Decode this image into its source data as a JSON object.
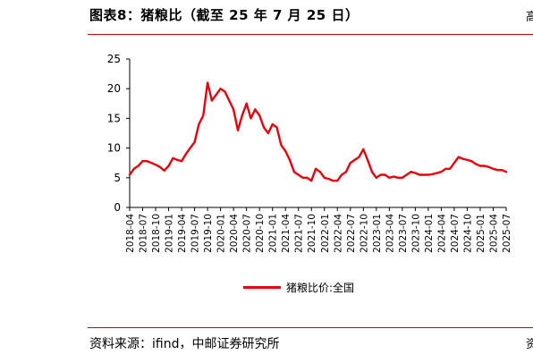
{
  "title": "图表8：猪粮比（截至 25 年 7 月 25 日）",
  "source": "资料来源：ifind，中邮证券研究所",
  "edge_marks": {
    "top": "高",
    "bottom": "资"
  },
  "chart_data": {
    "type": "line",
    "title": "",
    "xlabel": "",
    "ylabel": "",
    "ylim": [
      0,
      25
    ],
    "yticks": [
      0,
      5,
      10,
      15,
      20,
      25
    ],
    "x_range": [
      "2018-04",
      "2025-07"
    ],
    "xtick_labels": [
      "2018-04",
      "2018-07",
      "2018-10",
      "2019-01",
      "2019-04",
      "2019-07",
      "2019-10",
      "2020-01",
      "2020-04",
      "2020-07",
      "2020-10",
      "2021-01",
      "2021-04",
      "2021-07",
      "2021-10",
      "2022-01",
      "2022-04",
      "2022-07",
      "2022-10",
      "2023-01",
      "2023-04",
      "2023-07",
      "2023-10",
      "2024-01",
      "2024-04",
      "2024-07",
      "2024-10",
      "2025-01",
      "2025-04",
      "2025-07"
    ],
    "legend_position": "bottom",
    "colors": {
      "series": "#e8000b"
    },
    "series": [
      {
        "name": "猪粮比价:全国",
        "x": [
          "2018-04",
          "2018-05",
          "2018-06",
          "2018-07",
          "2018-08",
          "2018-09",
          "2018-10",
          "2018-11",
          "2018-12",
          "2019-01",
          "2019-02",
          "2019-03",
          "2019-04",
          "2019-05",
          "2019-06",
          "2019-07",
          "2019-08",
          "2019-09",
          "2019-10",
          "2019-11",
          "2019-12",
          "2020-01",
          "2020-02",
          "2020-03",
          "2020-04",
          "2020-05",
          "2020-06",
          "2020-07",
          "2020-08",
          "2020-09",
          "2020-10",
          "2020-11",
          "2020-12",
          "2021-01",
          "2021-02",
          "2021-03",
          "2021-04",
          "2021-05",
          "2021-06",
          "2021-07",
          "2021-08",
          "2021-09",
          "2021-10",
          "2021-11",
          "2021-12",
          "2022-01",
          "2022-02",
          "2022-03",
          "2022-04",
          "2022-05",
          "2022-06",
          "2022-07",
          "2022-08",
          "2022-09",
          "2022-10",
          "2022-11",
          "2022-12",
          "2023-01",
          "2023-02",
          "2023-03",
          "2023-04",
          "2023-05",
          "2023-06",
          "2023-07",
          "2023-08",
          "2023-09",
          "2023-10",
          "2023-11",
          "2023-12",
          "2024-01",
          "2024-02",
          "2024-03",
          "2024-04",
          "2024-05",
          "2024-06",
          "2024-07",
          "2024-08",
          "2024-09",
          "2024-10",
          "2024-11",
          "2024-12",
          "2025-01",
          "2025-02",
          "2025-03",
          "2025-04",
          "2025-05",
          "2025-06",
          "2025-07"
        ],
        "values": [
          5.5,
          6.5,
          7.0,
          7.8,
          7.8,
          7.5,
          7.2,
          6.8,
          6.2,
          7.0,
          8.3,
          8.0,
          7.8,
          9.0,
          10.0,
          11.0,
          14.0,
          15.5,
          21.0,
          18.0,
          19.0,
          20.0,
          19.5,
          18.0,
          16.5,
          13.0,
          15.5,
          17.5,
          15.0,
          16.5,
          15.5,
          13.5,
          12.5,
          14.0,
          13.5,
          10.5,
          9.5,
          8.0,
          6.0,
          5.5,
          5.0,
          5.0,
          4.5,
          6.5,
          6.0,
          5.0,
          4.8,
          4.5,
          4.5,
          5.5,
          6.0,
          7.5,
          8.0,
          8.5,
          9.8,
          8.0,
          6.0,
          5.0,
          5.5,
          5.5,
          5.0,
          5.2,
          5.0,
          5.0,
          5.5,
          6.0,
          5.8,
          5.5,
          5.5,
          5.5,
          5.6,
          5.8,
          6.0,
          6.5,
          6.5,
          7.5,
          8.5,
          8.2,
          8.0,
          7.8,
          7.3,
          7.0,
          7.0,
          6.8,
          6.5,
          6.3,
          6.3,
          6.0
        ]
      }
    ]
  }
}
